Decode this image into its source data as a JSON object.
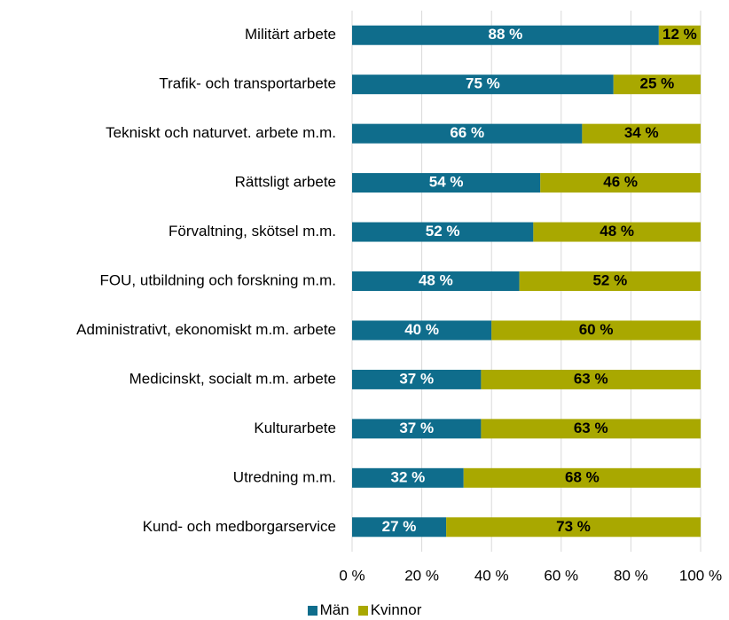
{
  "chart_data": {
    "type": "bar",
    "orientation": "horizontal",
    "stacked": "percent",
    "categories": [
      "Militärt arbete",
      "Trafik- och transportarbete",
      "Tekniskt och naturvet. arbete m.m.",
      "Rättsligt arbete",
      "Förvaltning, skötsel m.m.",
      "FOU, utbildning och forskning m.m.",
      "Administrativt, ekonomiskt m.m. arbete",
      "Medicinskt, socialt m.m. arbete",
      "Kulturarbete",
      "Utredning m.m.",
      "Kund- och medborgarservice"
    ],
    "series": [
      {
        "name": "Män",
        "color": "#0f6d8c",
        "label_color": "#ffffff",
        "values": [
          88,
          75,
          66,
          54,
          52,
          48,
          40,
          37,
          37,
          32,
          27
        ]
      },
      {
        "name": "Kvinnor",
        "color": "#a9a800",
        "label_color": "#000000",
        "values": [
          12,
          25,
          34,
          46,
          48,
          52,
          60,
          63,
          63,
          68,
          73
        ]
      }
    ],
    "xlim": [
      0,
      100
    ],
    "xticks": [
      0,
      20,
      40,
      60,
      80,
      100
    ],
    "tick_suffix": " %",
    "value_suffix": " %",
    "grid": "vertical",
    "legend_position": "bottom"
  }
}
